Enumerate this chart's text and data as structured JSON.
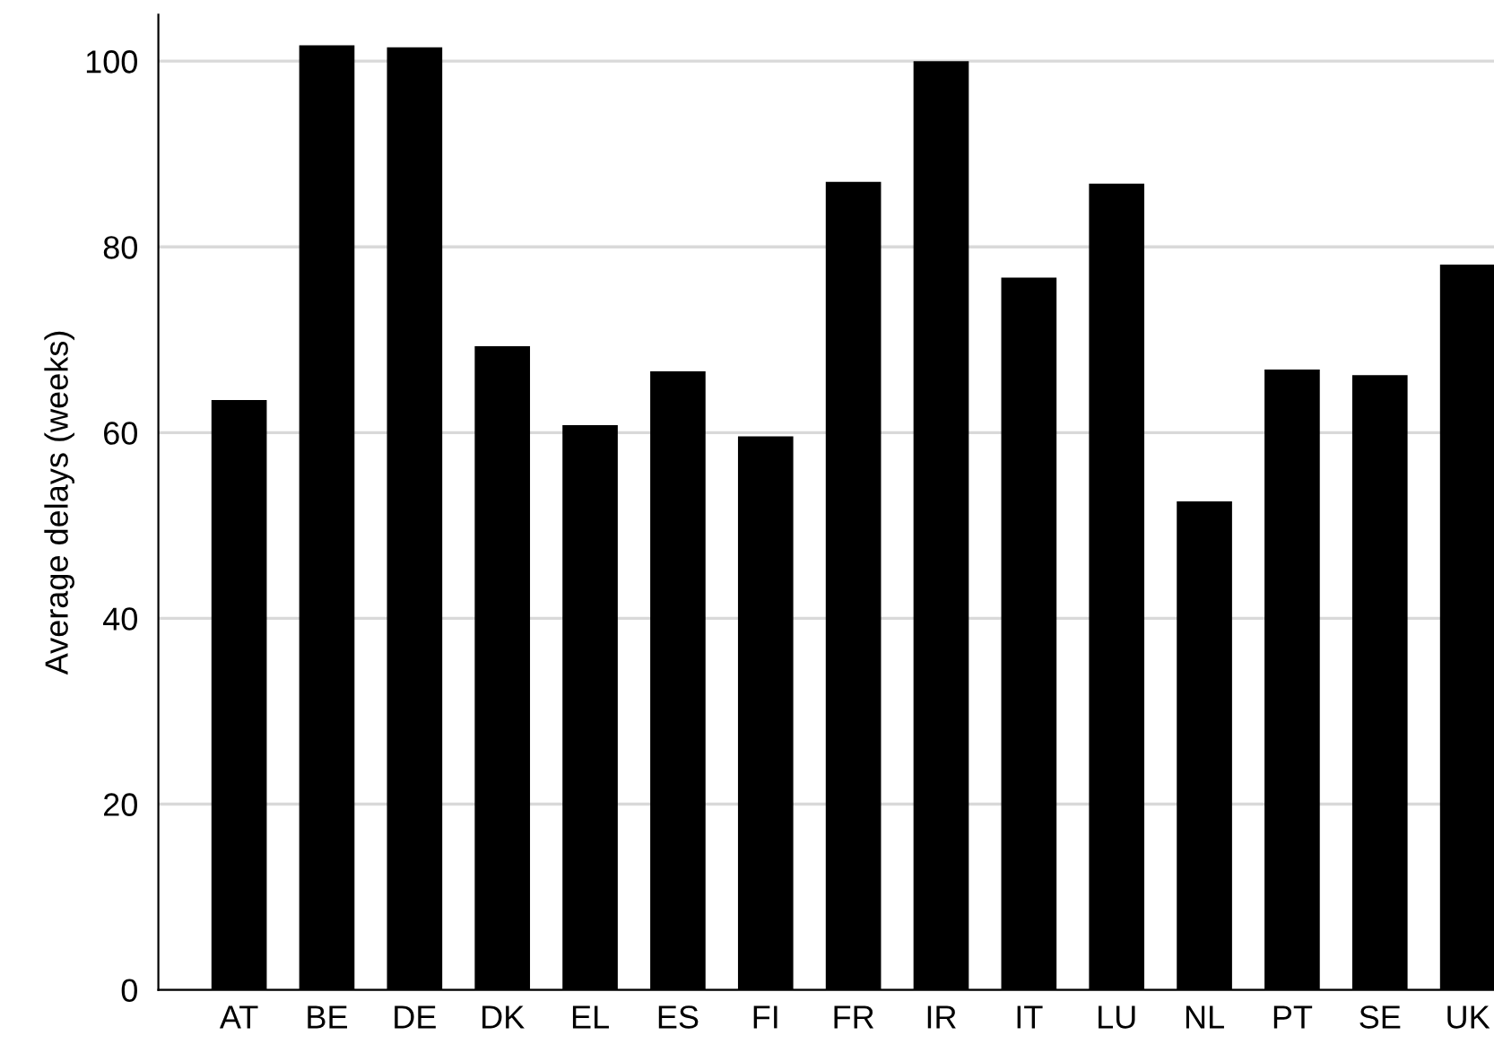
{
  "chart_data": {
    "type": "bar",
    "ylabel": "Average delays (weeks)",
    "categories": [
      "AT",
      "BE",
      "DE",
      "DK",
      "EL",
      "ES",
      "FI",
      "FR",
      "IR",
      "IT",
      "LU",
      "NL",
      "PT",
      "SE",
      "UK"
    ],
    "values": [
      63.5,
      101.7,
      101.5,
      69.3,
      60.8,
      66.6,
      59.6,
      87.0,
      100.0,
      76.7,
      86.8,
      52.6,
      66.8,
      66.2,
      78.1
    ],
    "color": "#000000",
    "ylim": [
      0,
      105
    ],
    "yticks": [
      0,
      20,
      40,
      60,
      80,
      100
    ],
    "grid": "y",
    "legend": false
  }
}
